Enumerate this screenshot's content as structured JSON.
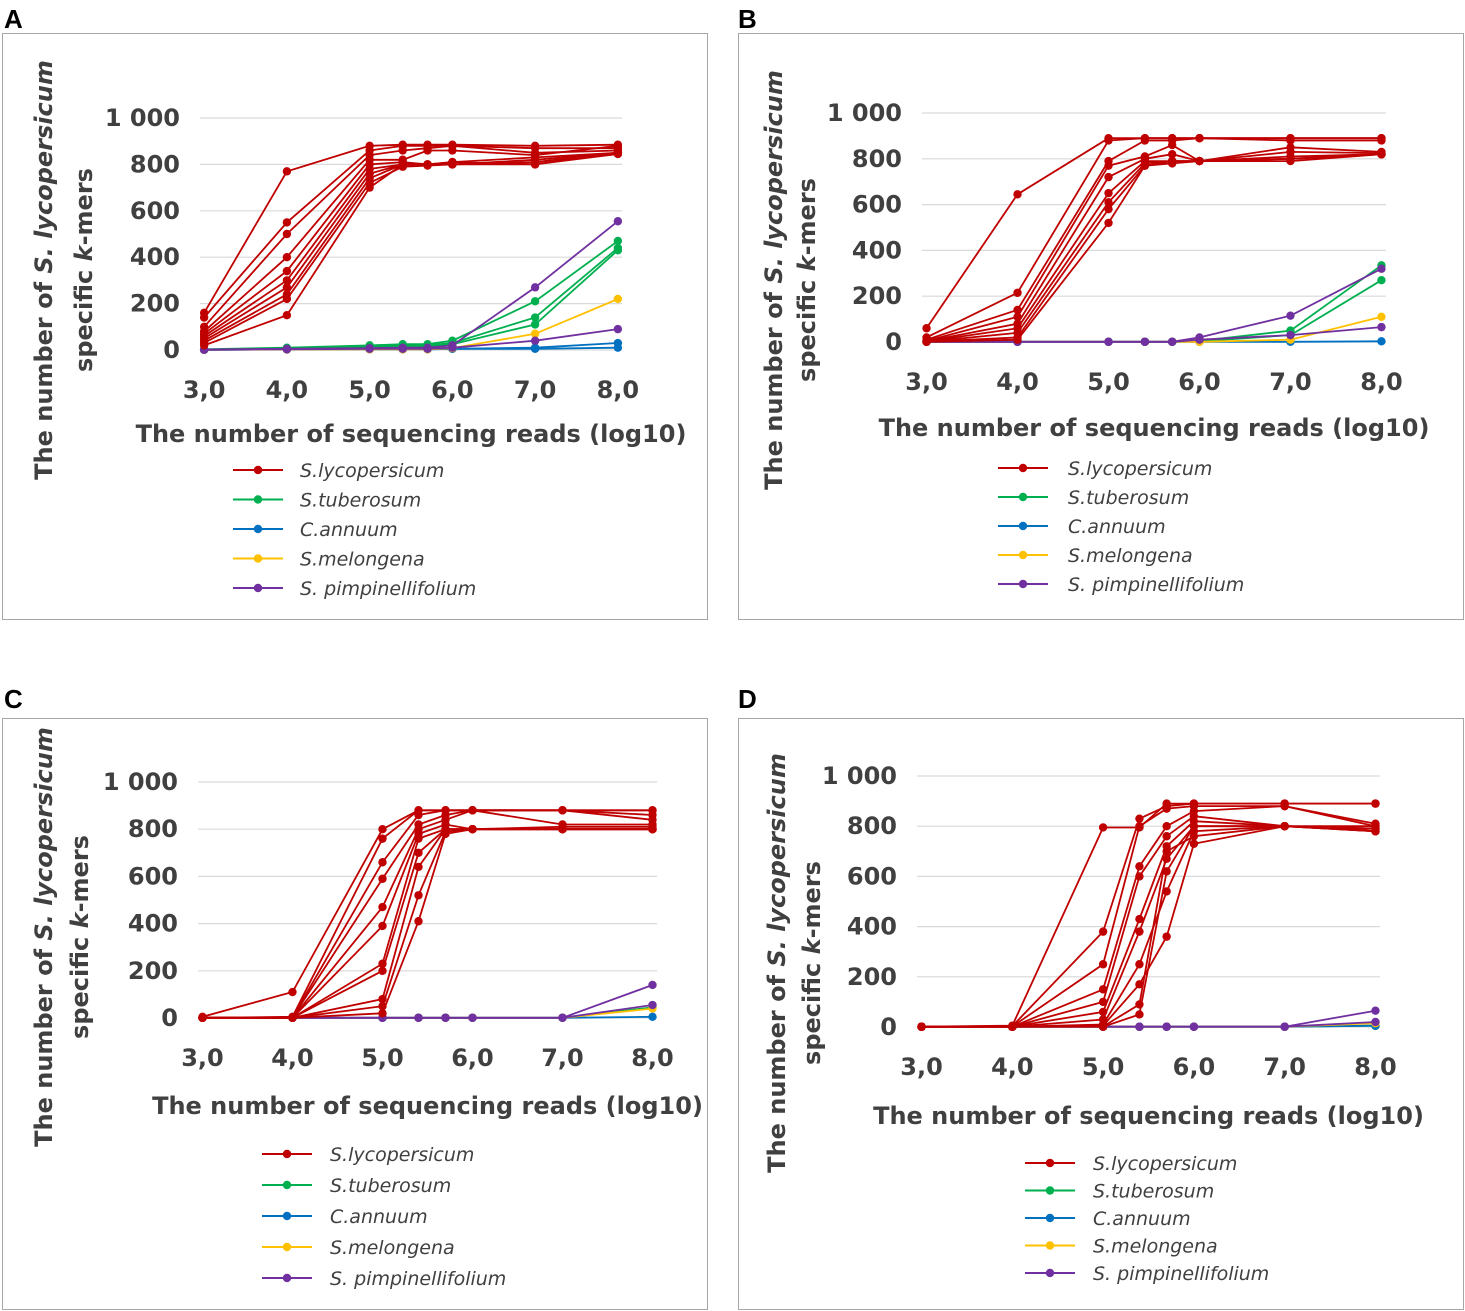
{
  "figure": {
    "series_colors": {
      "S.lycopersicum": "#c00000",
      "S.tuberosum": "#00b050",
      "C.annuum": "#0070c0",
      "S.melongena": "#ffc000",
      "S. pimpinellifolium": "#7030a0"
    },
    "grid_color": "#d9d9d9",
    "frame_color": "#a6a6a6"
  },
  "chart_data": [
    {
      "type": "line",
      "panel": "A",
      "xlabel": "The number of sequencing reads (log10)",
      "ylabel": "The number of S. lycopersicum specific k-mers",
      "ylabel_parts": {
        "line1_prefix": "The number of ",
        "line1_italic": "S. lycopersicum",
        "line2_prefix": "specific ",
        "line2_italic": "k",
        "line2_suffix": "-mers"
      },
      "x_ticks": [
        "3,0",
        "4,0",
        "5,0",
        "6,0",
        "7,0",
        "8,0"
      ],
      "y_ticks": [
        "0",
        "200",
        "400",
        "600",
        "800",
        "1 000"
      ],
      "xlim": [
        2.95,
        8.05
      ],
      "ylim": [
        0,
        1000
      ],
      "x": [
        3.0,
        4.0,
        5.0,
        5.4,
        5.7,
        6.0,
        7.0,
        8.0
      ],
      "legend": [
        "S.lycopersicum",
        "S.tuberosum",
        "C.annuum",
        "S.melongena",
        "S. pimpinellifolium"
      ],
      "series": [
        {
          "name": "S.lycopersicum",
          "values": [
            160,
            770,
            880,
            885,
            885,
            885,
            880,
            885
          ]
        },
        {
          "name": "S.lycopersicum",
          "values": [
            140,
            550,
            860,
            880,
            880,
            880,
            870,
            870
          ]
        },
        {
          "name": "S.lycopersicum",
          "values": [
            100,
            500,
            840,
            860,
            870,
            880,
            850,
            860
          ]
        },
        {
          "name": "S.lycopersicum",
          "values": [
            80,
            400,
            820,
            820,
            860,
            860,
            840,
            880
          ]
        },
        {
          "name": "S.lycopersicum",
          "values": [
            70,
            340,
            800,
            810,
            800,
            810,
            830,
            850
          ]
        },
        {
          "name": "S.lycopersicum",
          "values": [
            60,
            300,
            780,
            800,
            800,
            800,
            820,
            850
          ]
        },
        {
          "name": "S.lycopersicum",
          "values": [
            50,
            270,
            760,
            800,
            800,
            800,
            810,
            850
          ]
        },
        {
          "name": "S.lycopersicum",
          "values": [
            40,
            240,
            740,
            800,
            800,
            810,
            800,
            845
          ]
        },
        {
          "name": "S.lycopersicum",
          "values": [
            30,
            220,
            720,
            790,
            795,
            800,
            800,
            850
          ]
        },
        {
          "name": "S.lycopersicum",
          "values": [
            20,
            150,
            700,
            800,
            800,
            800,
            810,
            845
          ]
        },
        {
          "name": "S.tuberosum",
          "values": [
            3,
            10,
            20,
            25,
            25,
            40,
            210,
            470
          ]
        },
        {
          "name": "S.tuberosum",
          "values": [
            2,
            5,
            15,
            20,
            20,
            30,
            140,
            440
          ]
        },
        {
          "name": "S.tuberosum",
          "values": [
            1,
            3,
            10,
            15,
            15,
            25,
            110,
            430
          ]
        },
        {
          "name": "C.annuum",
          "values": [
            1,
            2,
            3,
            3,
            3,
            5,
            5,
            10
          ]
        },
        {
          "name": "C.annuum",
          "values": [
            1,
            2,
            3,
            3,
            3,
            5,
            10,
            30
          ]
        },
        {
          "name": "S.melongena",
          "values": [
            1,
            2,
            3,
            3,
            3,
            8,
            70,
            220
          ]
        },
        {
          "name": "S. pimpinellifolium",
          "values": [
            2,
            5,
            8,
            10,
            10,
            20,
            270,
            555
          ]
        },
        {
          "name": "S. pimpinellifolium",
          "values": [
            1,
            3,
            5,
            5,
            5,
            10,
            40,
            90
          ]
        }
      ]
    },
    {
      "type": "line",
      "panel": "B",
      "xlabel": "The number of sequencing reads (log10)",
      "ylabel": "The number of S. lycopersicum specific k-mers",
      "ylabel_parts": {
        "line1_prefix": "The number of ",
        "line1_italic": "S. lycopersicum",
        "line2_prefix": "specific ",
        "line2_italic": "k",
        "line2_suffix": "-mers"
      },
      "x_ticks": [
        "3,0",
        "4,0",
        "5,0",
        "6,0",
        "7,0",
        "8,0"
      ],
      "y_ticks": [
        "0",
        "200",
        "400",
        "600",
        "800",
        "1 000"
      ],
      "xlim": [
        2.95,
        8.05
      ],
      "ylim": [
        0,
        1000
      ],
      "x": [
        3.0,
        4.0,
        5.0,
        5.4,
        5.7,
        6.0,
        7.0,
        8.0
      ],
      "legend": [
        "S.lycopersicum",
        "S.tuberosum",
        "C.annuum",
        "S.melongena",
        "S. pimpinellifolium"
      ],
      "series": [
        {
          "name": "S.lycopersicum",
          "values": [
            60,
            645,
            890,
            890,
            890,
            890,
            890,
            890
          ]
        },
        {
          "name": "S.lycopersicum",
          "values": [
            20,
            215,
            880,
            890,
            890,
            890,
            890,
            890
          ]
        },
        {
          "name": "S.lycopersicum",
          "values": [
            10,
            140,
            790,
            880,
            880,
            890,
            880,
            880
          ]
        },
        {
          "name": "S.lycopersicum",
          "values": [
            5,
            110,
            770,
            810,
            860,
            790,
            850,
            830
          ]
        },
        {
          "name": "S.lycopersicum",
          "values": [
            3,
            80,
            720,
            800,
            820,
            790,
            830,
            825
          ]
        },
        {
          "name": "S.lycopersicum",
          "values": [
            2,
            60,
            650,
            790,
            790,
            790,
            810,
            820
          ]
        },
        {
          "name": "S.lycopersicum",
          "values": [
            1,
            40,
            610,
            780,
            790,
            790,
            800,
            820
          ]
        },
        {
          "name": "S.lycopersicum",
          "values": [
            1,
            20,
            580,
            770,
            780,
            790,
            790,
            820
          ]
        },
        {
          "name": "S.lycopersicum",
          "values": [
            1,
            10,
            520,
            770,
            790,
            790,
            800,
            820
          ]
        },
        {
          "name": "S.tuberosum",
          "values": [
            1,
            1,
            1,
            1,
            1,
            5,
            50,
            335
          ]
        },
        {
          "name": "S.tuberosum",
          "values": [
            1,
            1,
            1,
            1,
            1,
            3,
            30,
            270
          ]
        },
        {
          "name": "C.annuum",
          "values": [
            1,
            1,
            1,
            1,
            1,
            1,
            1,
            3
          ]
        },
        {
          "name": "S.melongena",
          "values": [
            1,
            1,
            1,
            1,
            1,
            1,
            10,
            110
          ]
        },
        {
          "name": "S. pimpinellifolium",
          "values": [
            1,
            1,
            1,
            1,
            1,
            20,
            115,
            320
          ]
        },
        {
          "name": "S. pimpinellifolium",
          "values": [
            1,
            1,
            1,
            1,
            1,
            10,
            30,
            65
          ]
        }
      ]
    },
    {
      "type": "line",
      "panel": "C",
      "xlabel": "The number of sequencing reads (log10)",
      "ylabel": "The number of S. lycopersicum specific k-mers",
      "ylabel_parts": {
        "line1_prefix": "The number of ",
        "line1_italic": "S. lycopersicum",
        "line2_prefix": "specific ",
        "line2_italic": "k",
        "line2_suffix": "-mers"
      },
      "x_ticks": [
        "3,0",
        "4,0",
        "5,0",
        "6,0",
        "7,0",
        "8,0"
      ],
      "y_ticks": [
        "0",
        "200",
        "400",
        "600",
        "800",
        "1 000"
      ],
      "xlim": [
        2.95,
        8.05
      ],
      "ylim": [
        0,
        1000
      ],
      "x": [
        3.0,
        4.0,
        5.0,
        5.4,
        5.7,
        6.0,
        7.0,
        8.0
      ],
      "legend": [
        "S.lycopersicum",
        "S.tuberosum",
        "C.annuum",
        "S.melongena",
        "S. pimpinellifolium"
      ],
      "series": [
        {
          "name": "S.lycopersicum",
          "values": [
            5,
            110,
            800,
            880,
            880,
            880,
            880,
            880
          ]
        },
        {
          "name": "S.lycopersicum",
          "values": [
            1,
            5,
            760,
            880,
            880,
            880,
            880,
            880
          ]
        },
        {
          "name": "S.lycopersicum",
          "values": [
            1,
            3,
            660,
            860,
            880,
            880,
            880,
            860
          ]
        },
        {
          "name": "S.lycopersicum",
          "values": [
            1,
            2,
            590,
            820,
            860,
            880,
            880,
            840
          ]
        },
        {
          "name": "S.lycopersicum",
          "values": [
            1,
            1,
            470,
            800,
            840,
            880,
            820,
            820
          ]
        },
        {
          "name": "S.lycopersicum",
          "values": [
            1,
            1,
            390,
            780,
            820,
            800,
            810,
            810
          ]
        },
        {
          "name": "S.lycopersicum",
          "values": [
            1,
            1,
            230,
            760,
            800,
            800,
            800,
            800
          ]
        },
        {
          "name": "S.lycopersicum",
          "values": [
            1,
            1,
            200,
            700,
            800,
            800,
            800,
            800
          ]
        },
        {
          "name": "S.lycopersicum",
          "values": [
            1,
            1,
            80,
            640,
            800,
            800,
            800,
            800
          ]
        },
        {
          "name": "S.lycopersicum",
          "values": [
            1,
            1,
            50,
            520,
            790,
            800,
            800,
            800
          ]
        },
        {
          "name": "S.lycopersicum",
          "values": [
            1,
            1,
            20,
            410,
            780,
            800,
            800,
            800
          ]
        },
        {
          "name": "S.tuberosum",
          "values": [
            1,
            1,
            1,
            1,
            1,
            1,
            1,
            45
          ]
        },
        {
          "name": "C.annuum",
          "values": [
            1,
            1,
            1,
            1,
            1,
            1,
            1,
            5
          ]
        },
        {
          "name": "S.melongena",
          "values": [
            1,
            1,
            1,
            1,
            1,
            1,
            1,
            40
          ]
        },
        {
          "name": "S. pimpinellifolium",
          "values": [
            1,
            1,
            1,
            1,
            1,
            1,
            1,
            140
          ]
        },
        {
          "name": "S. pimpinellifolium",
          "values": [
            1,
            1,
            1,
            1,
            1,
            1,
            1,
            55
          ]
        }
      ]
    },
    {
      "type": "line",
      "panel": "D",
      "xlabel": "The number of sequencing reads (log10)",
      "ylabel": "The number of S. lycopersicum specific k-mers",
      "ylabel_parts": {
        "line1_prefix": "The number of ",
        "line1_italic": "S. lycopersicum",
        "line2_prefix": "specific ",
        "line2_italic": "k",
        "line2_suffix": "-mers"
      },
      "x_ticks": [
        "3,0",
        "4,0",
        "5,0",
        "6,0",
        "7,0",
        "8,0"
      ],
      "y_ticks": [
        "0",
        "200",
        "400",
        "600",
        "800",
        "1 000"
      ],
      "xlim": [
        2.95,
        8.05
      ],
      "ylim": [
        0,
        1000
      ],
      "x": [
        3.0,
        4.0,
        5.0,
        5.4,
        5.7,
        6.0,
        7.0,
        8.0
      ],
      "legend": [
        "S.lycopersicum",
        "S.tuberosum",
        "C.annuum",
        "S.melongena",
        "S. pimpinellifolium"
      ],
      "series": [
        {
          "name": "S.lycopersicum",
          "values": [
            1,
            5,
            795,
            795,
            890,
            890,
            890,
            890
          ]
        },
        {
          "name": "S.lycopersicum",
          "values": [
            1,
            3,
            380,
            830,
            880,
            890,
            890,
            890
          ]
        },
        {
          "name": "S.lycopersicum",
          "values": [
            1,
            2,
            250,
            800,
            870,
            880,
            880,
            800
          ]
        },
        {
          "name": "S.lycopersicum",
          "values": [
            1,
            1,
            150,
            640,
            800,
            860,
            880,
            810
          ]
        },
        {
          "name": "S.lycopersicum",
          "values": [
            1,
            1,
            100,
            600,
            760,
            840,
            800,
            800
          ]
        },
        {
          "name": "S.lycopersicum",
          "values": [
            1,
            1,
            60,
            430,
            720,
            820,
            800,
            790
          ]
        },
        {
          "name": "S.lycopersicum",
          "values": [
            1,
            1,
            30,
            380,
            670,
            800,
            800,
            790
          ]
        },
        {
          "name": "S.lycopersicum",
          "values": [
            1,
            1,
            10,
            250,
            540,
            780,
            800,
            790
          ]
        },
        {
          "name": "S.lycopersicum",
          "values": [
            1,
            1,
            5,
            170,
            360,
            730,
            800,
            780
          ]
        },
        {
          "name": "S.lycopersicum",
          "values": [
            1,
            1,
            2,
            90,
            700,
            760,
            800,
            780
          ]
        },
        {
          "name": "S.lycopersicum",
          "values": [
            1,
            1,
            1,
            50,
            620,
            800,
            800,
            780
          ]
        },
        {
          "name": "S.tuberosum",
          "values": [
            1,
            1,
            1,
            1,
            1,
            1,
            1,
            5
          ]
        },
        {
          "name": "C.annuum",
          "values": [
            1,
            1,
            1,
            1,
            1,
            1,
            1,
            5
          ]
        },
        {
          "name": "S.melongena",
          "values": [
            1,
            1,
            1,
            1,
            1,
            1,
            1,
            15
          ]
        },
        {
          "name": "S. pimpinellifolium",
          "values": [
            1,
            1,
            1,
            1,
            1,
            1,
            1,
            65
          ]
        },
        {
          "name": "S. pimpinellifolium",
          "values": [
            1,
            1,
            1,
            1,
            1,
            1,
            1,
            20
          ]
        }
      ]
    }
  ]
}
